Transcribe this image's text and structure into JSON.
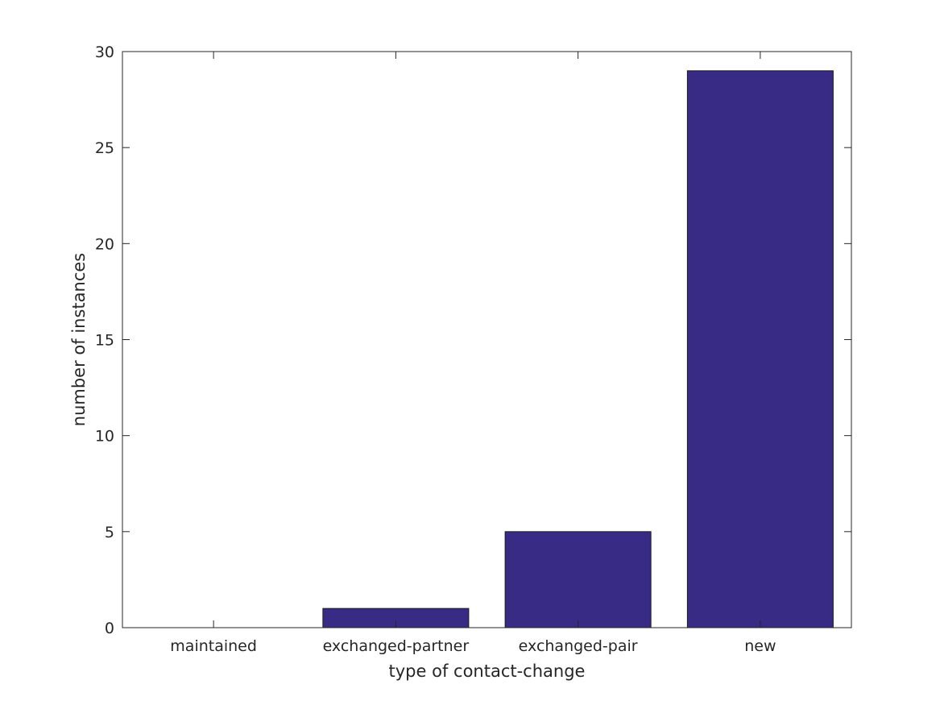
{
  "chart_data": {
    "type": "bar",
    "categories": [
      "maintained",
      "exchanged-partner",
      "exchanged-pair",
      "new"
    ],
    "values": [
      0,
      1,
      5,
      29
    ],
    "title": "",
    "xlabel": "type of contact-change",
    "ylabel": "number of instances",
    "ylim": [
      0,
      30
    ],
    "yticks": [
      0,
      5,
      10,
      15,
      20,
      25,
      30
    ],
    "grid": false,
    "legend": "none",
    "colors": {
      "bar_fill": "#372b86",
      "bar_stroke": "#1a1a1a",
      "axis": "#262626"
    }
  }
}
